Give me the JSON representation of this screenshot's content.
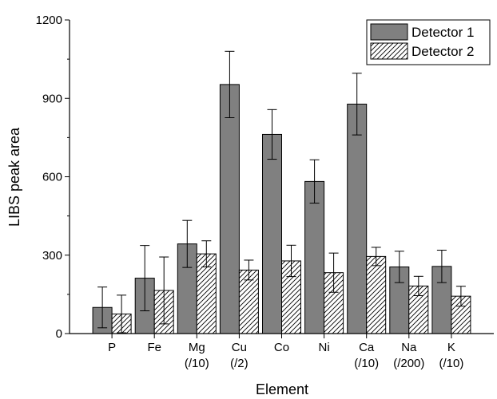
{
  "chart_data": {
    "type": "bar",
    "xlabel": "Element",
    "ylabel": "LIBS peak area",
    "ylim": [
      0,
      1200
    ],
    "yticks": [
      0,
      300,
      600,
      900,
      1200
    ],
    "categories": [
      {
        "name": "P",
        "sub": ""
      },
      {
        "name": "Fe",
        "sub": ""
      },
      {
        "name": "Mg",
        "sub": "(/10)"
      },
      {
        "name": "Cu",
        "sub": "(/2)"
      },
      {
        "name": "Co",
        "sub": ""
      },
      {
        "name": "Ni",
        "sub": ""
      },
      {
        "name": "Ca",
        "sub": "(/10)"
      },
      {
        "name": "Na",
        "sub": "(/200)"
      },
      {
        "name": "K",
        "sub": "(/10)"
      }
    ],
    "series": [
      {
        "name": "Detector 1",
        "fill": "#808080",
        "pattern": "solid",
        "values": [
          100,
          212,
          343,
          953,
          762,
          582,
          878,
          255,
          257
        ],
        "errors": [
          78,
          125,
          90,
          127,
          95,
          83,
          118,
          60,
          62
        ]
      },
      {
        "name": "Detector 2",
        "fill": "#ffffff",
        "pattern": "diagonal-hatch",
        "values": [
          75,
          165,
          305,
          243,
          278,
          233,
          295,
          182,
          143
        ],
        "errors": [
          72,
          128,
          50,
          38,
          60,
          75,
          35,
          37,
          38
        ]
      }
    ],
    "legend_position": "top-right",
    "grid": false
  }
}
